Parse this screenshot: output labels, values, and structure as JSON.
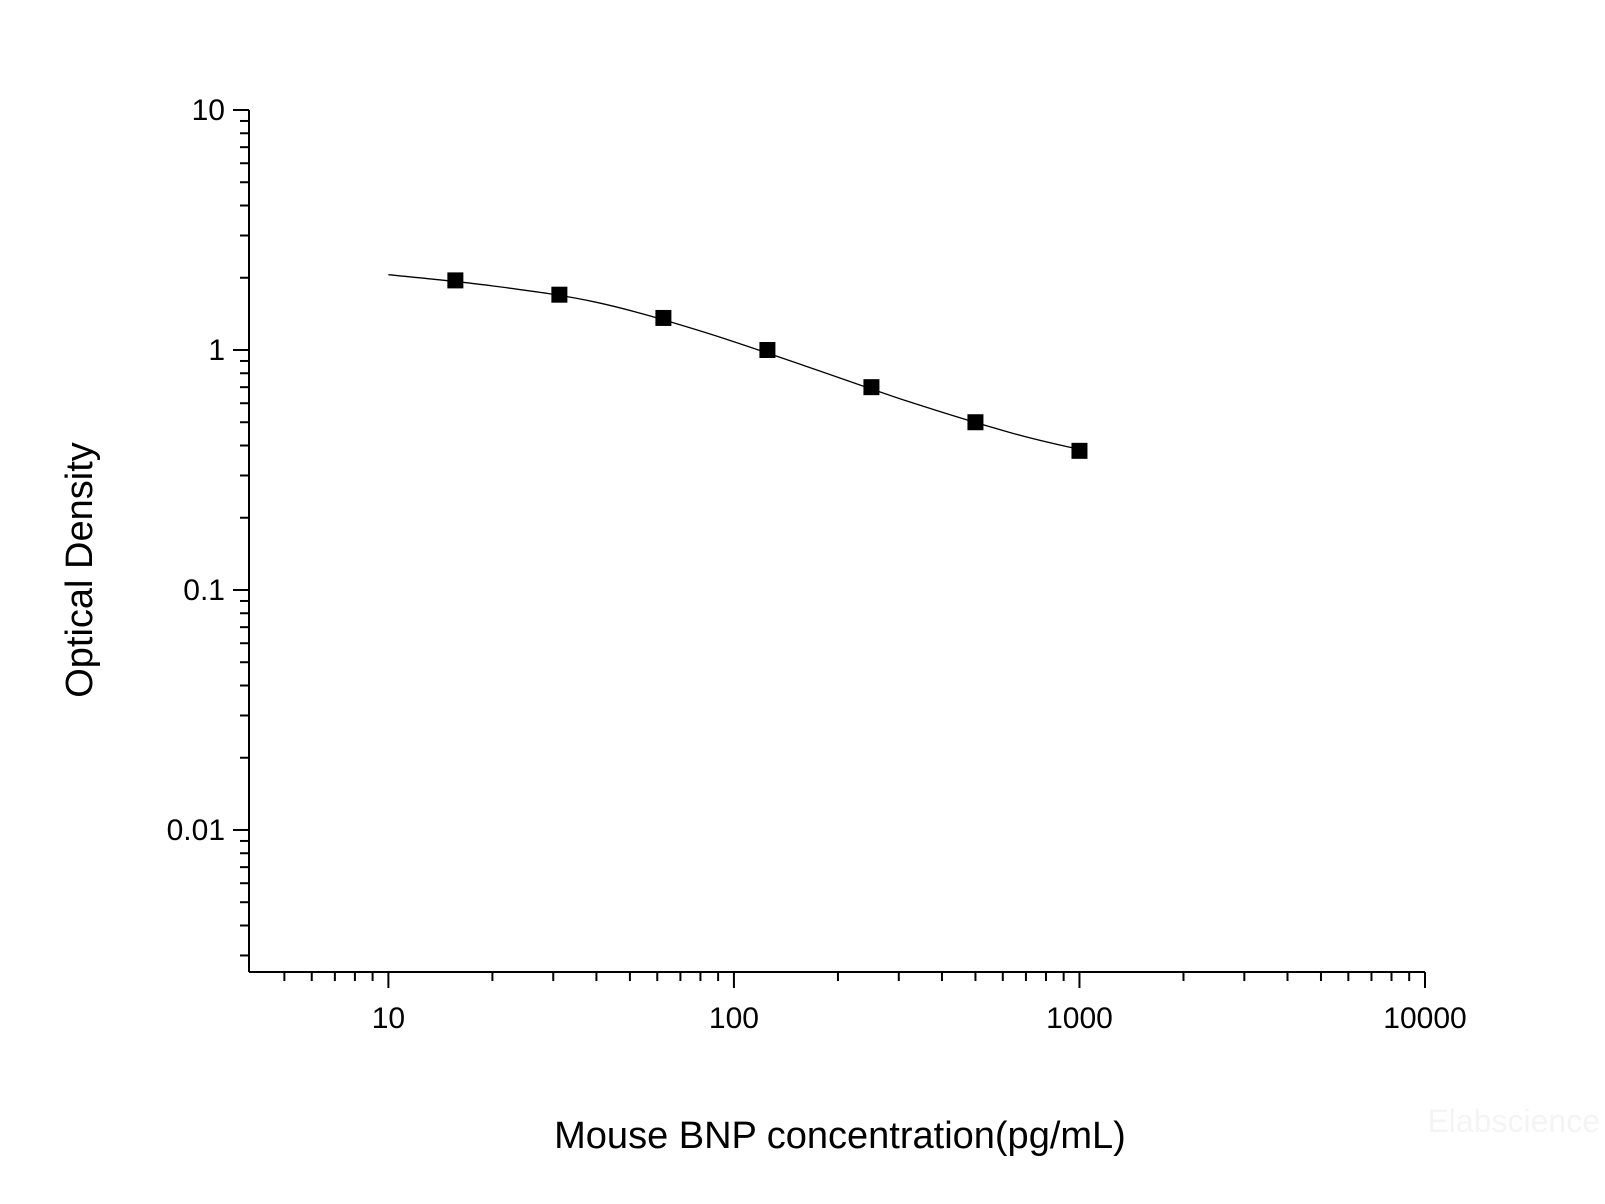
{
  "chart_data": {
    "type": "scatter",
    "x_label": "Mouse BNP concentration(pg/mL)",
    "y_label": "Optical Density",
    "watermark": "Elabscience",
    "xscale": "log",
    "yscale": "log",
    "xlim": [
      3.95,
      10000
    ],
    "ylim": [
      0.00256,
      10
    ],
    "xticks": [
      10,
      100,
      1000,
      10000
    ],
    "yticks": [
      10,
      1,
      0.1,
      0.01
    ],
    "xminorticks": [
      5,
      6,
      7,
      8,
      9,
      20,
      30,
      40,
      50,
      60,
      70,
      80,
      90,
      200,
      300,
      400,
      500,
      600,
      700,
      800,
      900,
      2000,
      3000,
      4000,
      5000,
      6000,
      7000,
      8000,
      9000
    ],
    "yminorticks": [
      0.003,
      0.004,
      0.005,
      0.006,
      0.007,
      0.008,
      0.009,
      0.02,
      0.03,
      0.04,
      0.05,
      0.06,
      0.07,
      0.08,
      0.09,
      0.2,
      0.3,
      0.4,
      0.5,
      0.6,
      0.7,
      0.8,
      0.9,
      2,
      3,
      4,
      5,
      6,
      7,
      8,
      9
    ],
    "x": [
      15.625,
      31.25,
      62.5,
      125,
      250,
      500,
      1000
    ],
    "values": [
      1.95,
      1.7,
      1.36,
      1.0,
      0.7,
      0.5,
      0.38
    ],
    "color": "#000000",
    "fit": {
      "x": [
        10,
        20,
        40,
        80,
        160,
        320,
        640,
        1000
      ],
      "values": [
        2.06,
        1.85,
        1.58,
        1.2,
        0.86,
        0.61,
        0.45,
        0.385
      ]
    }
  }
}
